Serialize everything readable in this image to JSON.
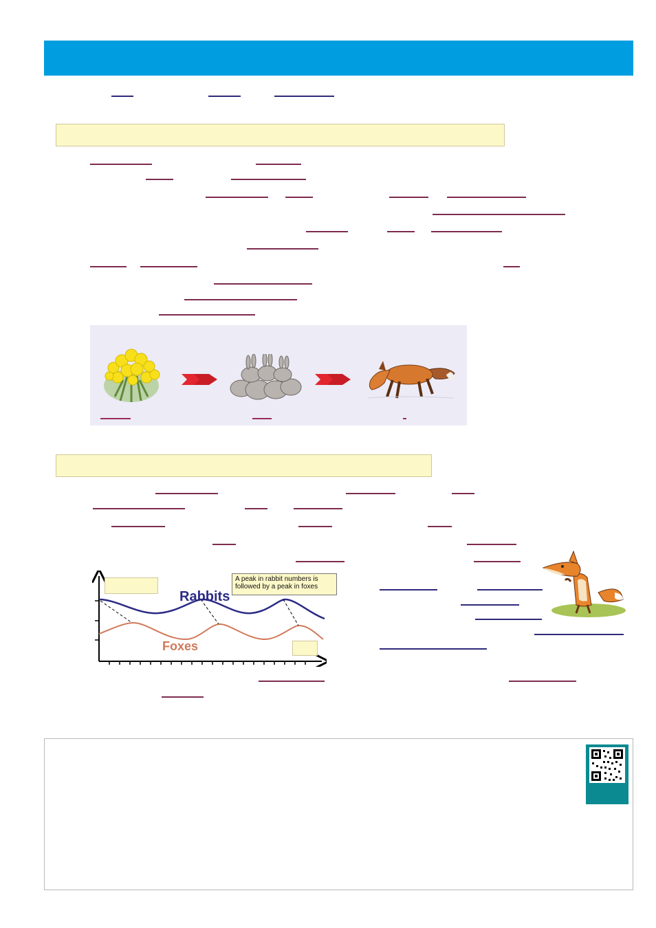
{
  "graph": {
    "annotation_line1": "A peak in rabbit numbers is",
    "annotation_line2": "followed by a peak in foxes",
    "rabbits_label": "Rabbits",
    "foxes_label": "Foxes",
    "rabbits_color": "#2b2a85",
    "foxes_color": "#d0795a"
  },
  "colors": {
    "header": "#009ee0",
    "section_bg": "#fdf8c8",
    "chain_panel_bg": "#ecebf6",
    "qr_card": "#0b8b91",
    "arrow_red": "#e3262f"
  },
  "icons": {
    "plant": "yellow-flower-plant-icon",
    "rabbits": "rabbit-group-icon",
    "fox": "fox-icon",
    "cartoon_fox": "cartoon-fox-icon",
    "qr": "qr-code-icon"
  }
}
